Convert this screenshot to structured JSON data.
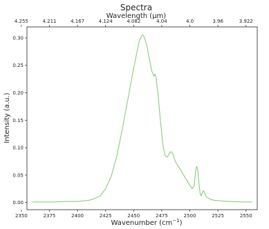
{
  "chart_data": {
    "type": "line",
    "title": "Spectra",
    "xlabel": "Wavenumber (cm",
    "xlabel_superscript": "−1",
    "xlabel_suffix": ")",
    "ylabel": "Intensity (a.u.)",
    "top_axis_label": "Wavelength (μm)",
    "xlim": [
      2355,
      2560
    ],
    "ylim": [
      -0.013,
      0.32
    ],
    "grid": false,
    "x_ticks": [
      2350,
      2375,
      2400,
      2425,
      2450,
      2475,
      2500,
      2525,
      2550
    ],
    "x_tick_labels": [
      "2350",
      "2375",
      "2400",
      "2425",
      "2450",
      "2475",
      "2500",
      "2525",
      "2550"
    ],
    "y_ticks": [
      0.0,
      0.05,
      0.1,
      0.15,
      0.2,
      0.25,
      0.3
    ],
    "y_tick_labels": [
      "0.00",
      "0.05",
      "0.10",
      "0.15",
      "0.20",
      "0.25",
      "0.30"
    ],
    "top_ticks_wavelength": [
      "4.255",
      "4.211",
      "4.167",
      "4.124",
      "4.082",
      "4.04",
      "4.0",
      "3.96",
      "3.922"
    ],
    "series": [
      {
        "color": "#88cc7a",
        "x": [
          2360,
          2370,
          2380,
          2390,
          2400,
          2405,
          2410,
          2415,
          2420,
          2425,
          2430,
          2435,
          2440,
          2445,
          2450,
          2453,
          2455,
          2457,
          2458,
          2459,
          2460,
          2462,
          2464,
          2466,
          2468,
          2469,
          2470,
          2472,
          2474,
          2476,
          2478,
          2480,
          2482,
          2483,
          2485,
          2487,
          2490,
          2493,
          2496,
          2499,
          2502,
          2504,
          2505,
          2506,
          2507,
          2508,
          2509,
          2510,
          2511,
          2512,
          2513,
          2515,
          2518,
          2522,
          2528,
          2535,
          2545,
          2555
        ],
        "y": [
          0.001,
          0.001,
          0.001,
          0.002,
          0.002,
          0.003,
          0.004,
          0.007,
          0.012,
          0.025,
          0.048,
          0.085,
          0.135,
          0.19,
          0.245,
          0.275,
          0.295,
          0.303,
          0.305,
          0.303,
          0.298,
          0.283,
          0.262,
          0.24,
          0.23,
          0.234,
          0.228,
          0.19,
          0.145,
          0.105,
          0.085,
          0.083,
          0.09,
          0.093,
          0.088,
          0.075,
          0.065,
          0.055,
          0.045,
          0.035,
          0.025,
          0.032,
          0.055,
          0.066,
          0.06,
          0.038,
          0.018,
          0.012,
          0.017,
          0.022,
          0.018,
          0.01,
          0.006,
          0.004,
          0.003,
          0.002,
          0.001,
          0.001
        ]
      }
    ]
  }
}
